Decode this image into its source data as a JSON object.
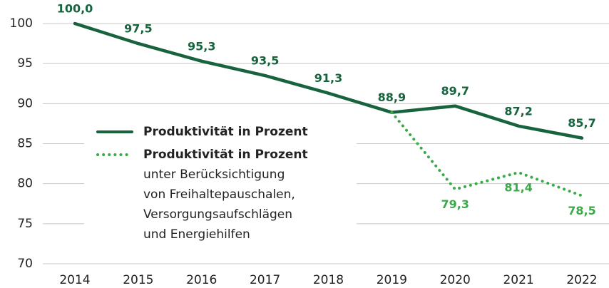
{
  "chart_data": {
    "type": "line",
    "categories": [
      "2014",
      "2015",
      "2016",
      "2017",
      "2018",
      "2019",
      "2020",
      "2021",
      "2022"
    ],
    "series": [
      {
        "name": "Produktivität in Prozent",
        "color": "#17633e",
        "style": "solid",
        "label_position": "above",
        "values": [
          100,
          97.5,
          95.3,
          93.5,
          91.3,
          88.9,
          89.7,
          87.2,
          85.7
        ],
        "value_labels": [
          "100,0",
          "97,5",
          "95,3",
          "93,5",
          "91,3",
          "88,9",
          "89,7",
          "87,2",
          "85,7"
        ]
      },
      {
        "name": "Produktivität in Prozent",
        "color": "#3aaa48",
        "style": "dotted",
        "label_position": "below",
        "note": [
          "unter Berücksichtigung",
          "von Freihaltepauschalen,",
          "Versorgungsaufschlägen",
          "und Energiehilfen"
        ],
        "values": [
          null,
          null,
          null,
          null,
          null,
          88.9,
          79.3,
          81.4,
          78.5
        ],
        "value_labels": [
          null,
          null,
          null,
          null,
          null,
          null,
          "79,3",
          "81,4",
          "78,5"
        ]
      }
    ],
    "ylim": [
      70,
      100
    ],
    "yticks": [
      70,
      75,
      80,
      85,
      90,
      95,
      100
    ],
    "grid": true
  }
}
